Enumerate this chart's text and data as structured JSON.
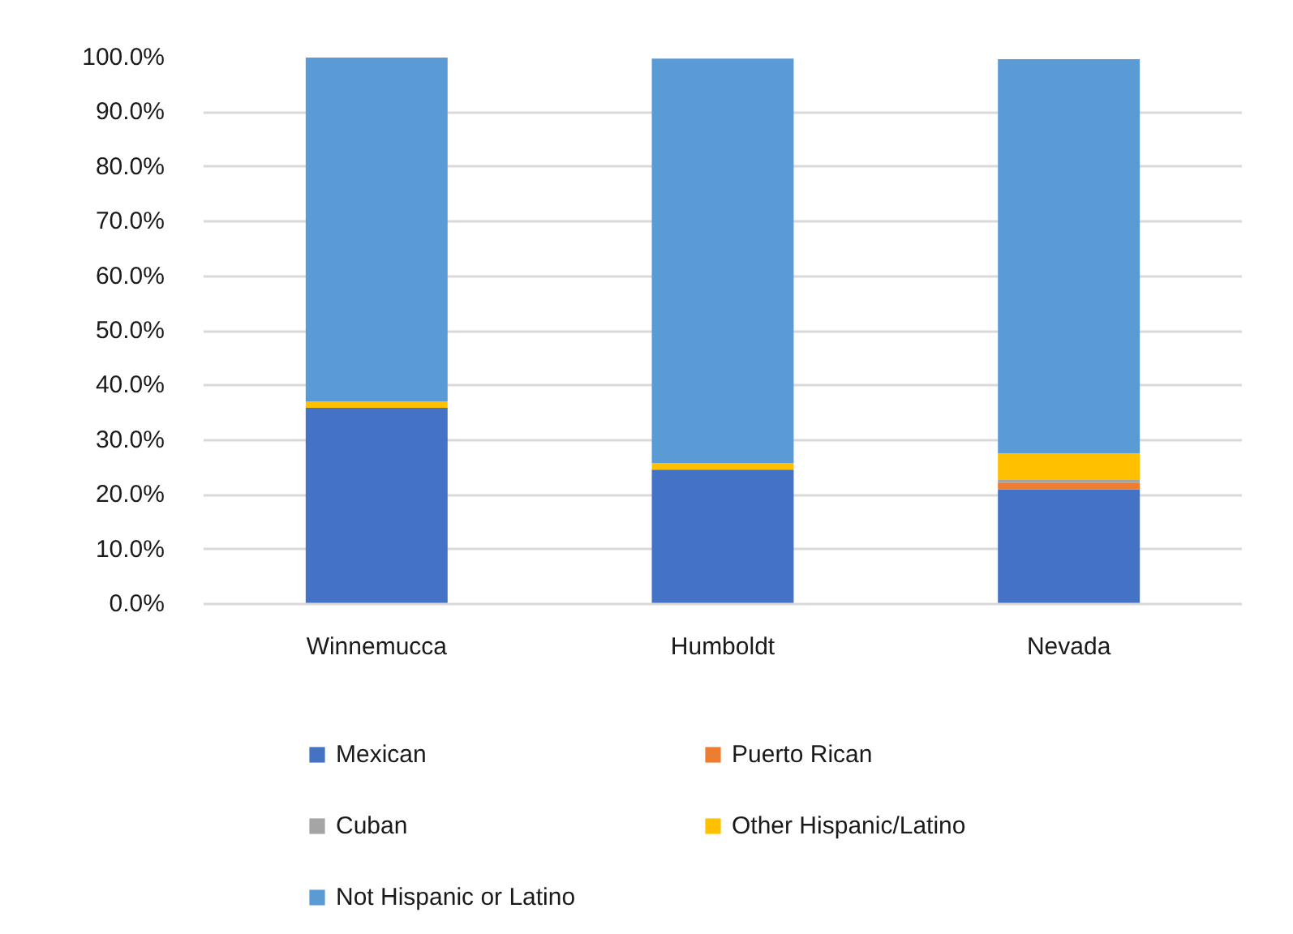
{
  "chart_data": {
    "type": "bar",
    "stacked": true,
    "categories": [
      "Winnemucca",
      "Humboldt",
      "Nevada"
    ],
    "series": [
      {
        "name": "Mexican",
        "color": "#4472c4",
        "values": [
          35.9,
          24.6,
          21.0
        ]
      },
      {
        "name": "Puerto Rican",
        "color": "#ed7d31",
        "values": [
          0.0,
          0.0,
          1.2
        ]
      },
      {
        "name": "Cuban",
        "color": "#a5a5a5",
        "values": [
          0.0,
          0.0,
          0.6
        ]
      },
      {
        "name": "Other Hispanic/Latino",
        "color": "#ffc000",
        "values": [
          1.2,
          1.2,
          4.8
        ]
      },
      {
        "name": "Not Hispanic or Latino",
        "color": "#5b9bd5",
        "values": [
          62.9,
          74.0,
          72.1
        ]
      }
    ],
    "ylim": [
      0,
      100
    ],
    "yticks": [
      {
        "value": 0,
        "label": "0.0%"
      },
      {
        "value": 10,
        "label": "10.0%"
      },
      {
        "value": 20,
        "label": "20.0%"
      },
      {
        "value": 30,
        "label": "30.0%"
      },
      {
        "value": 40,
        "label": "40.0%"
      },
      {
        "value": 50,
        "label": "50.0%"
      },
      {
        "value": 60,
        "label": "60.0%"
      },
      {
        "value": 70,
        "label": "70.0%"
      },
      {
        "value": 80,
        "label": "80.0%"
      },
      {
        "value": 90,
        "label": "90.0%"
      },
      {
        "value": 100,
        "label": "100.0%"
      }
    ],
    "grid": "y",
    "legend": "bottom"
  }
}
